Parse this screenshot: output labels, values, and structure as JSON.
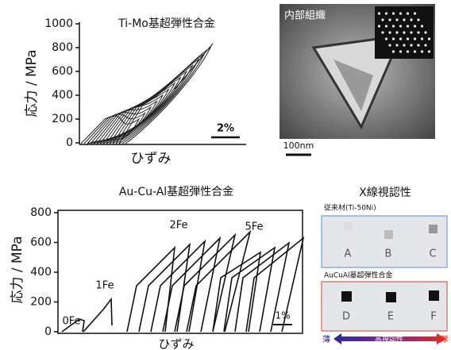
{
  "panel_a": {
    "title": "Ti-Mo基超弾性合金",
    "y_label": "応力 / MPa",
    "x_label": "ひずみ",
    "ylim": [
      0,
      1000
    ],
    "yticks": [
      0,
      200,
      400,
      600,
      800,
      1000
    ],
    "scale_label": "2%"
  },
  "panel_b": {
    "label": "内部組織",
    "scale_label": "100nm"
  },
  "panel_c": {
    "title": "Au-Cu-Al基超弾性合金",
    "y_label": "応力 / MPa",
    "x_label": "ひずみ",
    "ylim": [
      0,
      800
    ],
    "yticks": [
      0,
      200,
      400,
      600,
      800
    ],
    "curve_labels": [
      "0Fe",
      "1Fe",
      "2Fe",
      "5Fe"
    ],
    "scale_label": "1%"
  },
  "panel_d": {
    "title": "X線視認性",
    "group_1": {
      "label": "従来材(Ti-50Ni)",
      "samples": [
        "A",
        "B",
        "C"
      ]
    },
    "group_2": {
      "label": "AuCuAl基超弾性合金",
      "samples": [
        "D",
        "E",
        "F"
      ]
    },
    "arrow_labels": [
      "薄",
      "高視認性",
      "厚"
    ]
  }
}
